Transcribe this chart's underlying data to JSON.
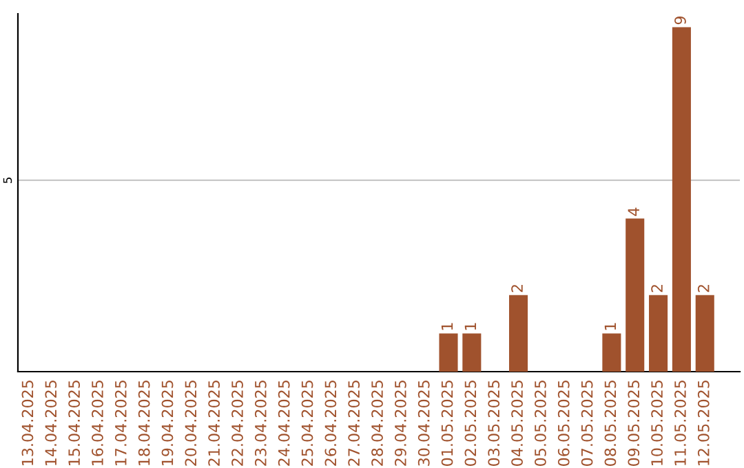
{
  "chart_data": {
    "type": "bar",
    "categories": [
      "13.04.2025",
      "14.04.2025",
      "15.04.2025",
      "16.04.2025",
      "17.04.2025",
      "18.04.2025",
      "19.04.2025",
      "20.04.2025",
      "21.04.2025",
      "22.04.2025",
      "23.04.2025",
      "24.04.2025",
      "25.04.2025",
      "26.04.2025",
      "27.04.2025",
      "28.04.2025",
      "29.04.2025",
      "30.04.2025",
      "01.05.2025",
      "02.05.2025",
      "03.05.2025",
      "04.05.2025",
      "05.05.2025",
      "06.05.2025",
      "07.05.2025",
      "08.05.2025",
      "09.05.2025",
      "10.05.2025",
      "11.05.2025",
      "12.05.2025"
    ],
    "values": [
      null,
      null,
      null,
      null,
      null,
      null,
      null,
      null,
      null,
      null,
      null,
      null,
      null,
      null,
      null,
      null,
      null,
      null,
      1,
      1,
      null,
      2,
      null,
      null,
      null,
      1,
      4,
      2,
      9,
      2
    ],
    "value_labels": [
      null,
      null,
      null,
      null,
      null,
      null,
      null,
      null,
      null,
      null,
      null,
      null,
      null,
      null,
      null,
      null,
      null,
      null,
      "1",
      "1",
      null,
      "2",
      null,
      null,
      null,
      "1",
      "4",
      "2",
      "9",
      "2"
    ],
    "color": "#a0522d",
    "ylim": [
      0,
      9.35
    ],
    "ref_lines": [
      {
        "axis": "y",
        "value": 5,
        "label": "5",
        "color": "#c8c8c8"
      }
    ]
  }
}
